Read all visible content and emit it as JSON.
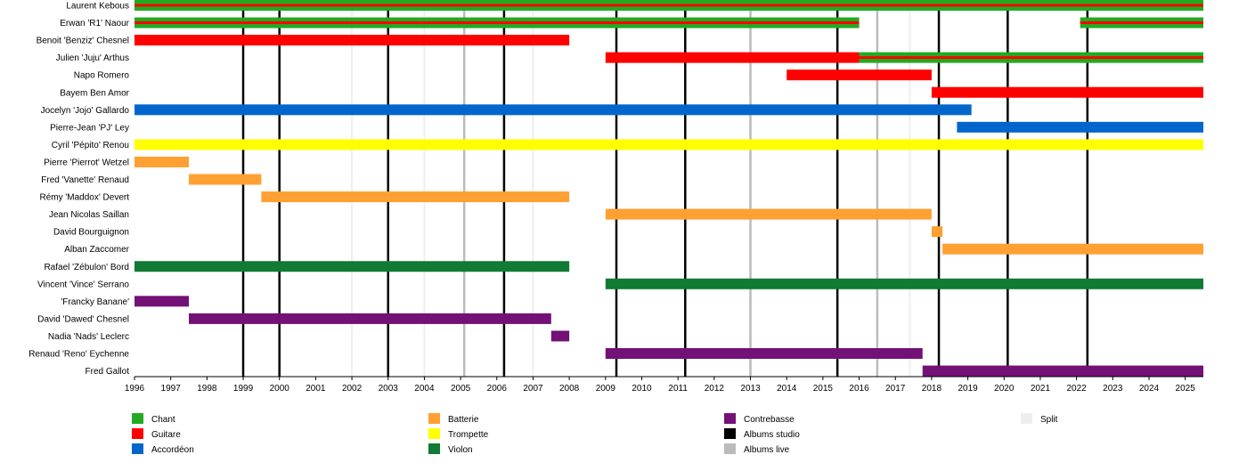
{
  "chart_data": {
    "type": "timeline",
    "title": "",
    "x_range": [
      1996,
      2025.5
    ],
    "x_ticks": [
      1996,
      1997,
      1998,
      1999,
      2000,
      2001,
      2002,
      2003,
      2004,
      2005,
      2006,
      2007,
      2008,
      2009,
      2010,
      2011,
      2012,
      2013,
      2014,
      2015,
      2016,
      2017,
      2018,
      2019,
      2020,
      2021,
      2022,
      2023,
      2024,
      2025
    ],
    "members": [
      {
        "name": "Laurent Kebous",
        "spans": [
          {
            "role": "Chant",
            "secondary": "Guitare",
            "start": 1996,
            "end": 2025.5
          }
        ]
      },
      {
        "name": "Erwan 'R1' Naour",
        "spans": [
          {
            "role": "Chant",
            "secondary": "Guitare",
            "start": 1996,
            "end": 2016
          },
          {
            "role": "Chant",
            "secondary": "Guitare",
            "start": 2022.1,
            "end": 2025.5
          }
        ]
      },
      {
        "name": "Benoit 'Benziz' Chesnel",
        "spans": [
          {
            "role": "Guitare",
            "start": 1996,
            "end": 2008
          }
        ]
      },
      {
        "name": "Julien 'Juju' Arthus",
        "spans": [
          {
            "role": "Guitare",
            "start": 2009,
            "end": 2016
          },
          {
            "role": "Chant",
            "secondary": "Guitare",
            "start": 2016,
            "end": 2025.5
          }
        ]
      },
      {
        "name": "Napo Romero",
        "spans": [
          {
            "role": "Guitare",
            "start": 2014,
            "end": 2018
          }
        ]
      },
      {
        "name": "Bayem Ben Amor",
        "spans": [
          {
            "role": "Guitare",
            "start": 2018,
            "end": 2025.5
          }
        ]
      },
      {
        "name": "Jocelyn 'Jojo' Gallardo",
        "spans": [
          {
            "role": "Accordéon",
            "start": 1996,
            "end": 2019.1
          }
        ]
      },
      {
        "name": "Pierre-Jean 'PJ' Ley",
        "spans": [
          {
            "role": "Accordéon",
            "start": 2018.7,
            "end": 2025.5
          }
        ]
      },
      {
        "name": "Cyril 'Pépito' Renou",
        "spans": [
          {
            "role": "Trompette",
            "start": 1996,
            "end": 2025.5
          }
        ]
      },
      {
        "name": "Pierre 'Pierrot' Wetzel",
        "spans": [
          {
            "role": "Batterie",
            "start": 1996,
            "end": 1997.5
          }
        ]
      },
      {
        "name": "Fred 'Vanette' Renaud",
        "spans": [
          {
            "role": "Batterie",
            "start": 1997.5,
            "end": 1999.5
          }
        ]
      },
      {
        "name": "Rémy 'Maddox' Devert",
        "spans": [
          {
            "role": "Batterie",
            "start": 1999.5,
            "end": 2008
          }
        ]
      },
      {
        "name": "Jean Nicolas Saillan",
        "spans": [
          {
            "role": "Batterie",
            "start": 2009,
            "end": 2018
          }
        ]
      },
      {
        "name": "David Bourguignon",
        "spans": [
          {
            "role": "Batterie",
            "start": 2018,
            "end": 2018.3
          }
        ]
      },
      {
        "name": "Alban Zaccomer",
        "spans": [
          {
            "role": "Batterie",
            "start": 2018.3,
            "end": 2025.5
          }
        ]
      },
      {
        "name": "Rafael 'Zébulon' Bord",
        "spans": [
          {
            "role": "Violon",
            "start": 1996,
            "end": 2008
          }
        ]
      },
      {
        "name": "Vincent 'Vince' Serrano",
        "spans": [
          {
            "role": "Violon",
            "start": 2009,
            "end": 2025.5
          }
        ]
      },
      {
        "name": "'Francky Banane'",
        "spans": [
          {
            "role": "Contrebasse",
            "start": 1996,
            "end": 1997.5
          }
        ]
      },
      {
        "name": "David 'Dawed' Chesnel",
        "spans": [
          {
            "role": "Contrebasse",
            "start": 1997.5,
            "end": 2007.5
          }
        ]
      },
      {
        "name": "Nadia 'Nads' Leclerc",
        "spans": [
          {
            "role": "Contrebasse",
            "start": 2007.5,
            "end": 2008
          }
        ]
      },
      {
        "name": "Renaud 'Reno' Eychenne",
        "spans": [
          {
            "role": "Contrebasse",
            "start": 2009,
            "end": 2017.75
          }
        ]
      },
      {
        "name": "Fred Gallot",
        "spans": [
          {
            "role": "Contrebasse",
            "start": 2017.75,
            "end": 2025.5
          }
        ]
      }
    ],
    "albums_studio": [
      1999,
      2000,
      2003,
      2006.2,
      2009.3,
      2011.2,
      2015.4,
      2018.2,
      2020.1,
      2022.3
    ],
    "albums_live": [
      2005.1,
      2013,
      2016.5
    ],
    "splits": [
      2002,
      2004,
      2007,
      2017.4
    ],
    "legend": [
      {
        "label": "Chant",
        "color": "#22aa22",
        "type": "role"
      },
      {
        "label": "Guitare",
        "color": "#ff0000",
        "type": "role"
      },
      {
        "label": "Accordéon",
        "color": "#0066cc",
        "type": "role"
      },
      {
        "label": "Batterie",
        "color": "#ffa033",
        "type": "role"
      },
      {
        "label": "Trompette",
        "color": "#ffff00",
        "type": "role"
      },
      {
        "label": "Violon",
        "color": "#117a33",
        "type": "role"
      },
      {
        "label": "Contrebasse",
        "color": "#731177",
        "type": "role"
      },
      {
        "label": "Albums studio",
        "color": "#000000",
        "type": "event"
      },
      {
        "label": "Albums live",
        "color": "#bbbbbb",
        "type": "event"
      },
      {
        "label": "Split",
        "color": "#eeeeee",
        "type": "event"
      }
    ],
    "legend_position": "bottom"
  }
}
